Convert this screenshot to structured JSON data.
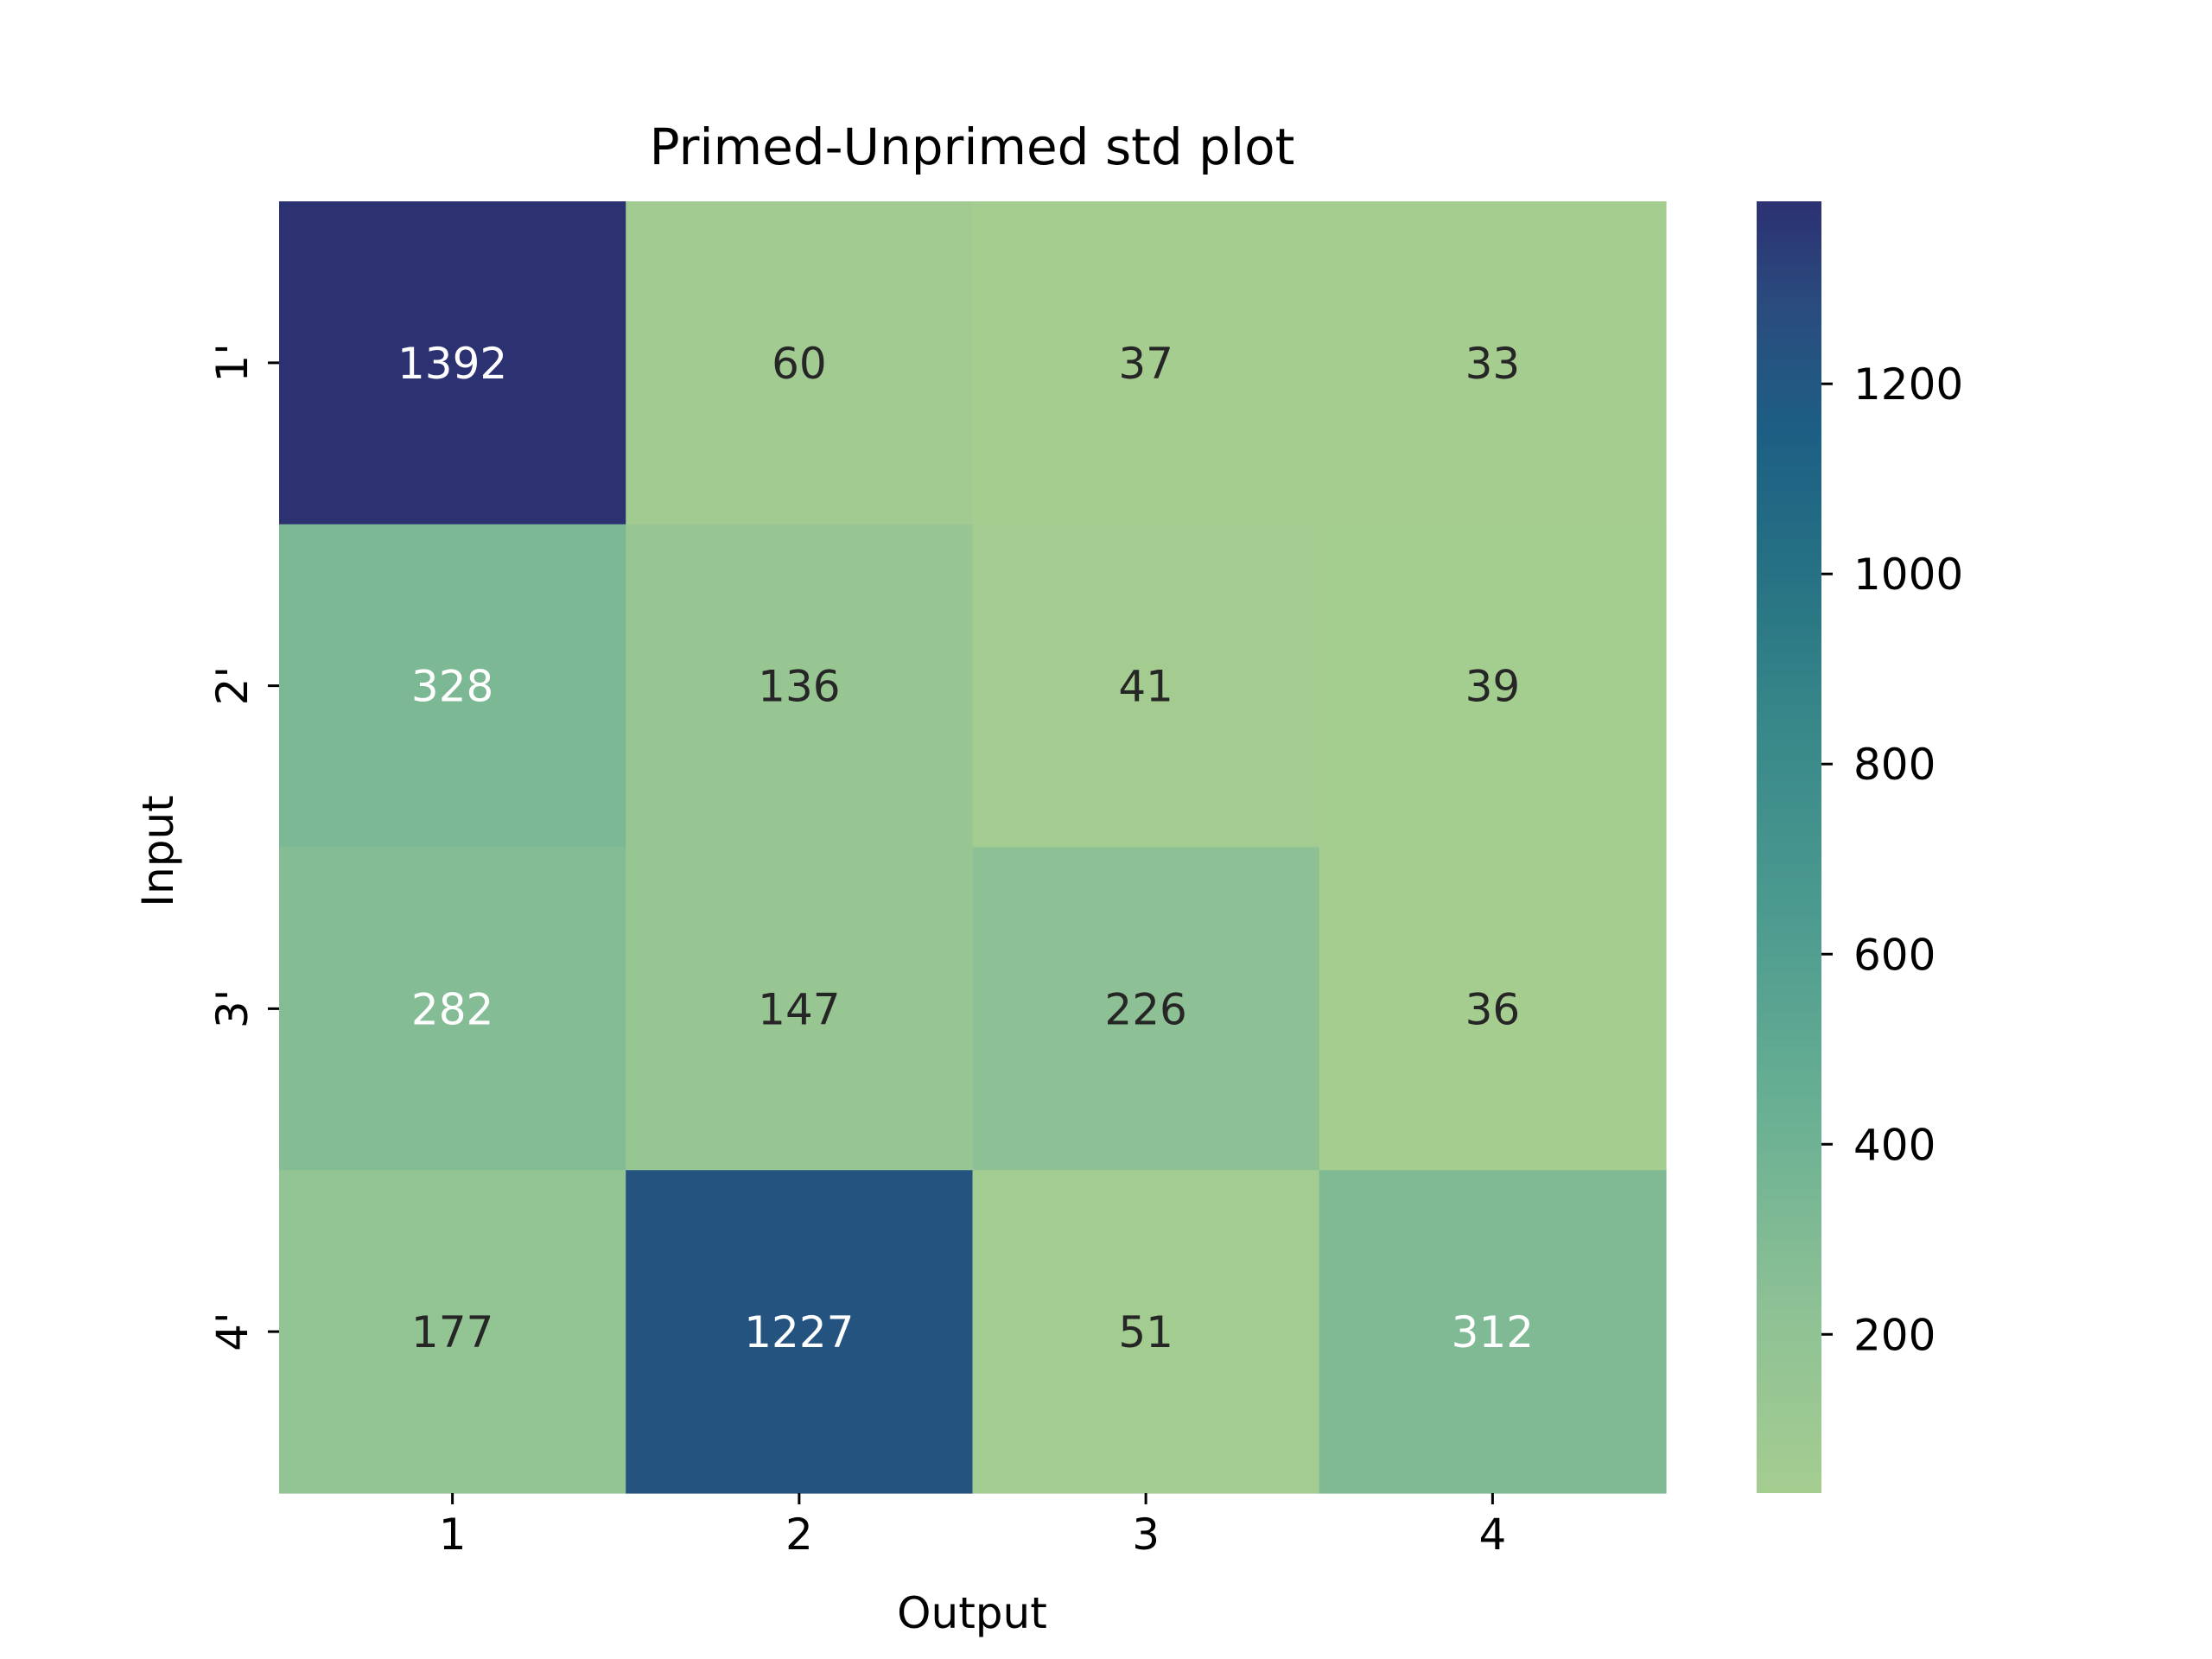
{
  "chart_data": {
    "type": "heatmap",
    "title": "Primed-Unprimed std plot",
    "xlabel": "Output",
    "ylabel": "Input",
    "x_categories": [
      "1",
      "2",
      "3",
      "4"
    ],
    "y_categories": [
      "1'",
      "2'",
      "3'",
      "4'"
    ],
    "values": [
      [
        1392,
        60,
        37,
        33
      ],
      [
        328,
        136,
        41,
        39
      ],
      [
        282,
        147,
        226,
        36
      ],
      [
        177,
        1227,
        51,
        312
      ]
    ],
    "colorbar": {
      "range": [
        33,
        1392
      ],
      "ticks": [
        "200",
        "400",
        "600",
        "800",
        "1000",
        "1200"
      ],
      "colormap": "crest"
    },
    "grid": false,
    "legend": "colorbar-right"
  }
}
